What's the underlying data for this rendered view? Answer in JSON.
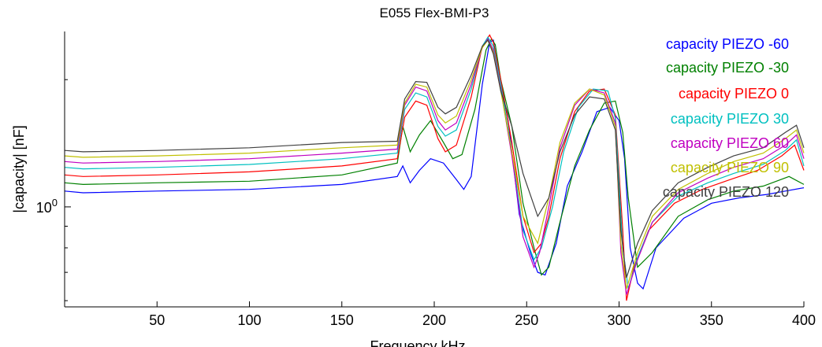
{
  "chart_data": {
    "type": "line",
    "title": "E055 Flex-BMI-P3",
    "xlabel": "Frequency kHz",
    "ylabel": "|capacity| [nF]",
    "yscale": "log",
    "xlim": [
      0,
      400
    ],
    "ylim": [
      0.58,
      2.6
    ],
    "x_ticks": [
      50,
      100,
      150,
      200,
      250,
      300,
      350,
      400
    ],
    "x_tick_labels": [
      "50",
      "100",
      "150",
      "200",
      "250",
      "300",
      "350",
      "400"
    ],
    "y_ticks": [
      1
    ],
    "y_tick_base": "10",
    "y_tick_exponent": "0",
    "grid": false,
    "legend_position": "top-right",
    "series": [
      {
        "name": "capacity PIEZO -60",
        "color": "#0000ff",
        "x": [
          0,
          10,
          50,
          100,
          150,
          180,
          183,
          187,
          192,
          198,
          205,
          212,
          216,
          220,
          226,
          230,
          232,
          235,
          240,
          246,
          252,
          256,
          260,
          266,
          272,
          280,
          288,
          295,
          300,
          303,
          306,
          310,
          313,
          320,
          335,
          350,
          365,
          380,
          390,
          400
        ],
        "y": [
          1.09,
          1.08,
          1.09,
          1.1,
          1.13,
          1.18,
          1.25,
          1.14,
          1.22,
          1.3,
          1.27,
          1.16,
          1.1,
          1.18,
          1.95,
          2.45,
          2.48,
          2.05,
          1.6,
          0.96,
          0.78,
          0.7,
          0.69,
          0.82,
          1.12,
          1.35,
          1.68,
          1.72,
          1.6,
          1.3,
          0.8,
          0.66,
          0.64,
          0.8,
          0.94,
          1.02,
          1.05,
          1.07,
          1.09,
          1.11
        ]
      },
      {
        "name": "capacity PIEZO -30",
        "color": "#008000",
        "x": [
          0,
          10,
          50,
          100,
          150,
          180,
          183,
          187,
          192,
          198,
          205,
          210,
          215,
          222,
          228,
          231,
          233,
          236,
          242,
          248,
          254,
          258,
          262,
          268,
          276,
          284,
          292,
          298,
          302,
          305,
          310,
          318,
          332,
          348,
          362,
          378,
          392,
          400
        ],
        "y": [
          1.14,
          1.13,
          1.14,
          1.15,
          1.19,
          1.27,
          1.55,
          1.35,
          1.48,
          1.6,
          1.42,
          1.3,
          1.33,
          1.7,
          2.35,
          2.5,
          2.42,
          2.0,
          1.55,
          1.02,
          0.8,
          0.69,
          0.72,
          0.92,
          1.25,
          1.52,
          1.76,
          1.78,
          1.5,
          1.05,
          0.72,
          0.78,
          0.95,
          1.04,
          1.09,
          1.12,
          1.18,
          1.13
        ]
      },
      {
        "name": "capacity PIEZO 0",
        "color": "#ff0000",
        "x": [
          0,
          10,
          50,
          100,
          150,
          180,
          184,
          190,
          196,
          202,
          206,
          212,
          220,
          226,
          230,
          232,
          236,
          242,
          248,
          254,
          258,
          262,
          268,
          276,
          284,
          292,
          298,
          302,
          304,
          308,
          316,
          330,
          345,
          360,
          375,
          388,
          395,
          400
        ],
        "y": [
          1.19,
          1.18,
          1.19,
          1.21,
          1.25,
          1.3,
          1.63,
          1.78,
          1.74,
          1.45,
          1.35,
          1.4,
          1.82,
          2.4,
          2.55,
          2.45,
          2.0,
          1.42,
          0.95,
          0.78,
          0.82,
          0.95,
          1.3,
          1.68,
          1.88,
          1.9,
          1.65,
          0.88,
          0.6,
          0.72,
          0.88,
          1.02,
          1.1,
          1.16,
          1.22,
          1.32,
          1.4,
          1.22
        ]
      },
      {
        "name": "capacity PIEZO 30",
        "color": "#00c0c0",
        "x": [
          0,
          10,
          50,
          100,
          150,
          180,
          184,
          190,
          196,
          202,
          206,
          212,
          220,
          226,
          229,
          232,
          236,
          242,
          248,
          254,
          258,
          264,
          270,
          278,
          286,
          294,
          298,
          302,
          305,
          310,
          318,
          332,
          348,
          362,
          378,
          390,
          396,
          400
        ],
        "y": [
          1.24,
          1.23,
          1.24,
          1.26,
          1.3,
          1.34,
          1.7,
          1.86,
          1.82,
          1.55,
          1.47,
          1.52,
          1.9,
          2.4,
          2.52,
          2.4,
          1.95,
          1.35,
          0.88,
          0.75,
          0.8,
          1.0,
          1.35,
          1.72,
          1.9,
          1.88,
          1.62,
          0.8,
          0.64,
          0.76,
          0.92,
          1.06,
          1.14,
          1.2,
          1.26,
          1.36,
          1.44,
          1.25
        ]
      },
      {
        "name": "capacity PIEZO 60",
        "color": "#c000c0",
        "x": [
          0,
          10,
          50,
          100,
          150,
          180,
          184,
          190,
          196,
          202,
          206,
          212,
          220,
          226,
          229,
          232,
          236,
          242,
          248,
          254,
          257,
          262,
          268,
          276,
          284,
          292,
          298,
          301,
          304,
          310,
          318,
          332,
          348,
          362,
          378,
          390,
          396,
          400
        ],
        "y": [
          1.28,
          1.27,
          1.28,
          1.3,
          1.34,
          1.37,
          1.74,
          1.92,
          1.88,
          1.6,
          1.52,
          1.58,
          1.95,
          2.38,
          2.5,
          2.35,
          1.9,
          1.32,
          0.85,
          0.72,
          0.78,
          1.0,
          1.38,
          1.74,
          1.9,
          1.86,
          1.58,
          0.78,
          0.62,
          0.75,
          0.92,
          1.08,
          1.17,
          1.24,
          1.3,
          1.4,
          1.48,
          1.3
        ]
      },
      {
        "name": "capacity PIEZO 90",
        "color": "#c0c000",
        "x": [
          0,
          10,
          50,
          100,
          150,
          180,
          184,
          190,
          196,
          202,
          206,
          212,
          220,
          226,
          229,
          232,
          236,
          242,
          248,
          256,
          262,
          268,
          276,
          284,
          292,
          298,
          301,
          304,
          310,
          318,
          332,
          348,
          362,
          378,
          390,
          396,
          400
        ],
        "y": [
          1.32,
          1.31,
          1.32,
          1.34,
          1.38,
          1.4,
          1.76,
          1.95,
          1.92,
          1.65,
          1.58,
          1.64,
          2.0,
          2.38,
          2.48,
          2.32,
          1.88,
          1.35,
          0.95,
          0.82,
          1.05,
          1.42,
          1.76,
          1.9,
          1.84,
          1.55,
          0.82,
          0.64,
          0.78,
          0.95,
          1.1,
          1.2,
          1.28,
          1.34,
          1.45,
          1.52,
          1.34
        ]
      },
      {
        "name": "capacity PIEZO 120",
        "color": "#404040",
        "x": [
          0,
          10,
          50,
          100,
          150,
          180,
          184,
          190,
          196,
          202,
          206,
          212,
          220,
          226,
          229,
          232,
          236,
          242,
          248,
          256,
          262,
          268,
          276,
          284,
          292,
          298,
          301,
          304,
          310,
          318,
          332,
          348,
          362,
          378,
          390,
          396,
          400
        ],
        "y": [
          1.36,
          1.35,
          1.36,
          1.38,
          1.42,
          1.43,
          1.8,
          1.98,
          1.97,
          1.72,
          1.66,
          1.72,
          2.05,
          2.4,
          2.48,
          2.3,
          1.88,
          1.55,
          1.2,
          0.95,
          1.05,
          1.35,
          1.65,
          1.82,
          1.8,
          1.52,
          0.88,
          0.68,
          0.82,
          0.98,
          1.14,
          1.24,
          1.32,
          1.38,
          1.5,
          1.56,
          1.38
        ]
      }
    ]
  }
}
